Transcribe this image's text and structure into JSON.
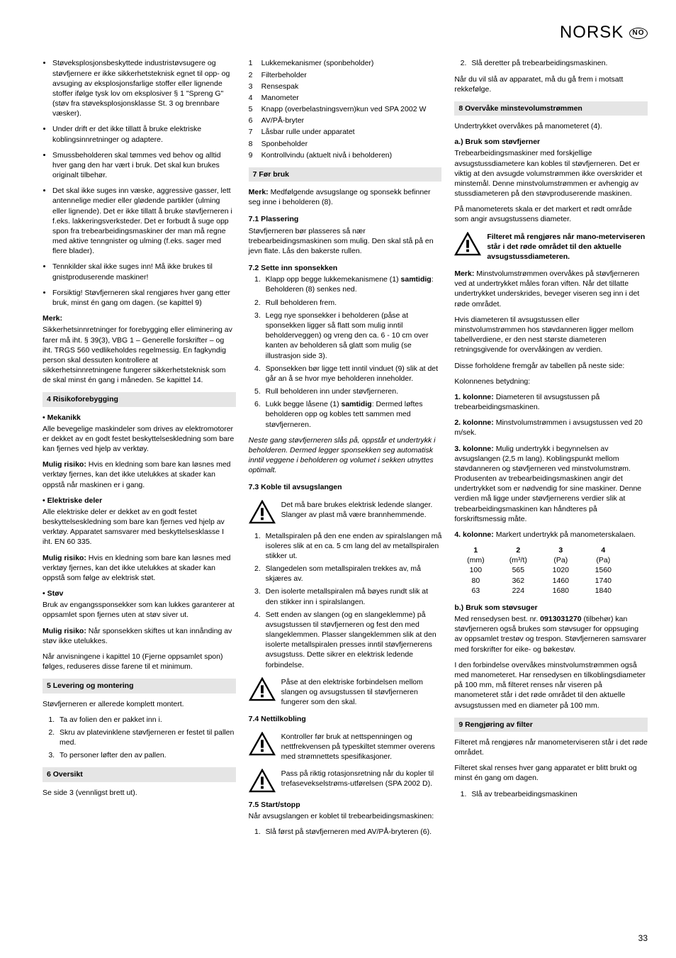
{
  "header": {
    "lang": "NORSK",
    "code": "NO"
  },
  "pagenum": "33",
  "col1": {
    "bullets1": [
      "Støveksplosjonsbeskyttede industristøvsugere og støvfjernere er ikke sikkerhetsteknisk egnet til opp- og avsuging av eksplosjonsfarlige stoffer eller lignende stoffer ifølge tysk lov om eksplosiver § 1 \"Spreng G\" (støv fra støveksplosjonsklasse St. 3 og brennbare væsker).",
      "Under drift er det ikke tillatt å bruke elektriske koblingsinnretninger og adaptere.",
      "Smussbeholderen skal tømmes ved behov og alltid hver gang den har vært i bruk. Det skal kun brukes originalt tilbehør.",
      "Det skal ikke suges inn væske, aggressive gasser, lett antennelige medier eller glødende partikler (ulming eller lignende). Det er ikke tillatt å bruke støvfjerneren i f.eks. lakkeringsverksteder. Det er forbudt å suge opp spon fra trebearbeidingsmaskiner der man må regne med aktive tenngnister og ulming (f.eks. sager med flere blader).",
      "Tennkilder skal ikke suges inn! Må ikke brukes til gnistproduserende maskiner!",
      "Forsiktig! Støvfjerneren skal rengjøres hver gang etter bruk, minst én gang om dagen. (se kapittel 9)"
    ],
    "merk_title": "Merk:",
    "merk_text": "Sikkerhetsinnretninger for forebygging eller eliminering av farer må iht. § 39(3), VBG 1 – Generelle forskrifter – og iht. TRGS 560 vedlikeholdes regelmessig. En fagkyndig person skal dessuten kontrollere at sikkerhetsinnretningene fungerer sikkerhetsteknisk som de skal minst én gang i måneden. Se kapittel 14.",
    "s4_title": "4   Risikoforebygging",
    "mek_title": "• Mekanikk",
    "mek_text": "Alle bevegelige maskindeler som drives av elektromotorer er dekket av en godt festet beskyttelseskledning som bare kan fjernes ved hjelp av verktøy.",
    "mek_risk_label": "Mulig risiko:",
    "mek_risk": " Hvis en kledning som bare kan løsnes med verktøy fjernes, kan det ikke utelukkes at skader kan oppstå når maskinen er i gang.",
    "el_title": "• Elektriske deler",
    "el_text": "Alle elektriske deler er dekket av en godt festet beskyttelseskledning som bare kan fjernes ved hjelp av verktøy. Apparatet samsvarer med beskyttelsesklasse I iht. EN 60 335.",
    "el_risk": " Hvis en kledning som bare kan løsnes med verktøy fjernes, kan det ikke utelukkes at skader kan oppstå som følge av elektrisk støt.",
    "stov_title": "• Støv",
    "stov_text": "Bruk av engangssponsekker som kan lukkes garanterer at oppsamlet spon fjernes uten at støv siver ut.",
    "stov_risk": " Når sponsekken skiftes ut kan innånding av støv ikke utelukkes.",
    "stov_note": "Når anvisningene i kapittel 10 (Fjerne oppsamlet spon) følges, reduseres disse farene til et minimum.",
    "s5_title": "5   Levering og montering",
    "s5_text": "Støvfjerneren er allerede komplett montert.",
    "s5_list": [
      "Ta av folien den er pakket inn i.",
      "Skru av platevinklene støvfjerneren er festet til pallen med.",
      "To personer løfter den av pallen."
    ],
    "s6_title": "6   Oversikt",
    "s6_text": "Se side 3 (vennligst brett ut)."
  },
  "col2": {
    "parts": [
      "Lukkemekanismer (sponbeholder)",
      "Filterbeholder",
      "Rensespak",
      "Manometer",
      "Knapp (overbelastningsvern)kun ved SPA 2002 W",
      "AV/PÅ-bryter",
      "Låsbar rulle under apparatet",
      "Sponbeholder",
      "Kontrollvindu (aktuelt nivå i beholderen)"
    ],
    "s7_title": "7   Før bruk",
    "s7_merk_label": "Merk:",
    "s7_merk": " Medfølgende avsugslange og sponsekk befinner seg inne i beholderen (8).",
    "s71_title": "7.1  Plassering",
    "s71_text": "Støvfjerneren bør plasseres så nær trebearbeidingsmaskinen som mulig. Den skal stå på en jevn flate. Lås den bakerste rullen.",
    "s72_title": "7.2  Sette inn sponsekken",
    "s72_list": [
      "Klapp opp begge lukkemekanismene (1) <b>samtidig</b>: Beholderen (8) senkes ned.",
      "Rull beholderen frem.",
      "Legg nye sponsekker i beholderen (påse at sponsekken ligger så flatt som mulig inntil beholderveggen) og vreng den ca. 6 - 10 cm over kanten av beholderen så glatt som mulig (se illustrasjon side 3).",
      "Sponsekken bør ligge tett inntil vinduet (9) slik at det går an å se hvor mye beholderen inneholder.",
      "Rull beholderen inn under støvfjerneren.",
      "Lukk begge låsene (1) <b>samtidig</b>: Dermed løftes beholderen opp og kobles tett sammen med støvfjerneren."
    ],
    "s72_italic": "Neste gang støvfjerneren slås på, oppstår et undertrykk i beholderen. Dermed legger sponsekken seg automatisk inntil veggene i beholderen og volumet i sekken utnyttes optimalt.",
    "s73_title": "7.3  Koble til avsugslangen",
    "s73_warn": "Det må bare brukes elektrisk ledende slanger. Slanger av plast må være brannhemmende.",
    "s73_list": [
      "Metallspiralen på den ene enden av spiralslangen må isoleres slik at en ca. 5 cm lang del av metallspiralen stikker ut.",
      "Slangedelen som metallspiralen trekkes av, må skjæres av.",
      "Den isolerte metallspiralen må bøyes rundt slik at den stikker inn i spiralslangen.",
      "Sett enden av slangen (og en slangeklemme) på avsugstussen til støvfjerneren og fest den med slangeklemmen. Plasser slangeklemmen slik at den isolerte metallspiralen presses inntil støvfjernerens avsugstuss. Dette sikrer en elektrisk ledende forbindelse."
    ],
    "s73_warn2": "Påse at den elektriske forbindelsen mellom slangen og avsugstussen til støvfjerneren fungerer som den skal.",
    "s74_title": "7.4  Nettilkobling",
    "s74_warn1": "Kontroller før bruk at nettspenningen og nettfrekvensen på typeskiltet stemmer overens med strømnettets spesifikasjoner.",
    "s74_warn2": "Pass på riktig rotasjonsretning når du kopler til trefasevekselstrøms-utførelsen (SPA 2002 D).",
    "s75_title": "7.5 Start/stopp",
    "s75_text": "Når avsugslangen er koblet til trebearbeidingsmaskinen:",
    "s75_list": [
      "Slå først på støvfjerneren med AV/PÅ-bryteren (6)."
    ]
  },
  "col3": {
    "top_list": [
      "Slå deretter på trebearbeidingsmaskinen."
    ],
    "top_text": "Når du vil slå av apparatet, må du gå frem i motsatt rekkefølge.",
    "s8_title": "8   Overvåke minstevolumstrømmen",
    "s8_text": "Undertrykket overvåkes på manometeret (4).",
    "a_title": "a.) Bruk som støvfjerner",
    "a_text1": "Trebearbeidingsmaskiner med forskjellige avsugstussdiametere kan kobles til støvfjerneren. Det er viktig at den avsugde volumstrømmen ikke overskrider et minstemål. Denne minstvolumstrømmen er avhengig av stussdiameteren på den støvproduserende maskinen.",
    "a_text2": "På manometerets skala er det markert et rødt område som angir avsugstussens diameter.",
    "a_warn": "Filteret må rengjøres når mano-meterviseren står i det røde området til den aktuelle avsugstussdiameteren.",
    "a_merk_label": "Merk:",
    "a_merk": " Minstvolumstrømmen overvåkes på støvfjerneren ved at undertrykket måles foran viften. Når det tillatte undertrykket underskrides, beveger viseren seg inn i det røde området.",
    "a_text3": "Hvis diameteren til avsugstussen eller minstvolumstrømmen hos støvdanneren ligger mellom tabellverdiene, er den nest største diameteren retningsgivende for overvåkingen av verdien.",
    "a_text4": "Disse forholdene fremgår av tabellen på neste side:",
    "a_text5": "Kolonnenes betydning:",
    "k1": "1. kolonne:",
    "k1t": " Diameteren til avsugstussen på trebearbeidingsmaskinen.",
    "k2": "2. kolonne:",
    "k2t": " Minstvolumstrømmen i avsugstussen ved 20 m/sek.",
    "k3": "3. kolonne:",
    "k3t": " Mulig undertrykk i begynnelsen av avsugslangen (2,5 m lang). Koblingspunkt mellom støvdanneren og støvfjerneren ved minstvolumstrøm. Produsenten av trebearbeidingsmaskinen angir det undertrykket som er nødvendig for sine maskiner. Denne verdien må ligge under støvfjernerens verdier slik at trebearbeidingsmaskinen kan håndteres på forskriftsmessig måte.",
    "k4": "4. kolonne:",
    "k4t": " Markert undertrykk på manometerskalaen.",
    "table": {
      "head": [
        "1",
        "2",
        "3",
        "4"
      ],
      "units": [
        "(mm)",
        "(m³/t)",
        "(Pa)",
        "(Pa)"
      ],
      "rows": [
        [
          "100",
          "565",
          "1020",
          "1560"
        ],
        [
          "80",
          "362",
          "1460",
          "1740"
        ],
        [
          "63",
          "224",
          "1680",
          "1840"
        ]
      ]
    },
    "b_title": "b.) Bruk som støvsuger",
    "b_text1a": "Med rensedysen best. nr. ",
    "b_text1b": "0913031270",
    "b_text1c": " (tilbehør) kan støvfjerneren også brukes som støvsuger for oppsuging av oppsamlet trestøv og trespon. Støvfjerneren samsvarer med forskrifter for eike- og bøkestøv.",
    "b_text2": "I den forbindelse overvåkes minstvolumstrømmen også med manometeret. Har rensedysen en tilkoblingsdiameter på 100 mm, må filteret renses når viseren på manometeret står i det røde området til den aktuelle avsugstussen med en diameter på 100 mm.",
    "s9_title": "9   Rengjøring av filter",
    "s9_text1": "Filteret må rengjøres når manometerviseren står i det røde området.",
    "s9_text2": "Filteret skal renses hver gang apparatet er blitt brukt og minst én gang om dagen.",
    "s9_list": [
      "Slå av trebearbeidingsmaskinen"
    ]
  }
}
